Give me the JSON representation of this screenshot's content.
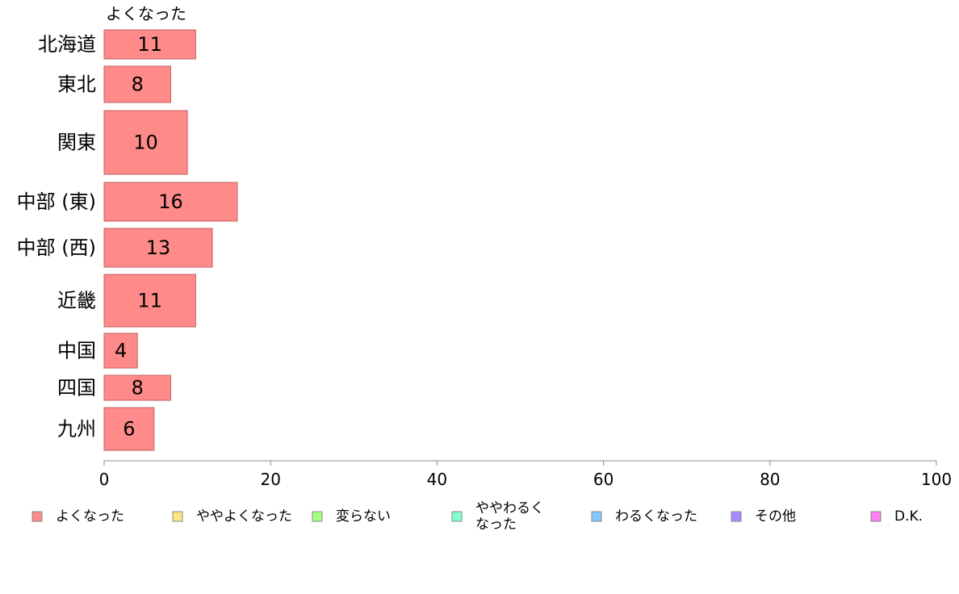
{
  "chart_data": {
    "type": "bar",
    "orientation": "horizontal",
    "stacked": true,
    "categories": [
      "北海道",
      "東北",
      "関東",
      "中部 (東)",
      "中部 (西)",
      "近畿",
      "中国",
      "四国",
      "九州"
    ],
    "series": [
      {
        "name": "よくなった",
        "values": [
          11,
          8,
          10,
          16,
          13,
          11,
          4,
          8,
          6
        ],
        "color": "#ff8a8a"
      }
    ],
    "series_title": "よくなった",
    "xlim": [
      0,
      100
    ],
    "xticks": [
      0,
      20,
      40,
      60,
      80,
      100
    ],
    "grid": false,
    "legend_position": "bottom",
    "legend": [
      {
        "label": "よくなった",
        "color": "#ff8a8a"
      },
      {
        "label": "ややよくなった",
        "color": "#ffe680"
      },
      {
        "label": "変らない",
        "color": "#a6ff80"
      },
      {
        "label": "ややわるく\nなった",
        "color": "#80ffcc"
      },
      {
        "label": "わるくなった",
        "color": "#80c8ff"
      },
      {
        "label": "その他",
        "color": "#a68aff"
      },
      {
        "label": "D.K.",
        "color": "#ff80f0"
      }
    ]
  }
}
